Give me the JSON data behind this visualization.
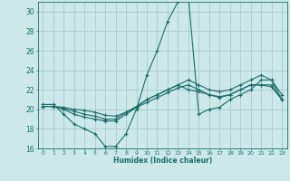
{
  "title": "",
  "xlabel": "Humidex (Indice chaleur)",
  "xlim": [
    -0.5,
    23.5
  ],
  "ylim": [
    16,
    31
  ],
  "yticks": [
    16,
    18,
    20,
    22,
    24,
    26,
    28,
    30
  ],
  "xticks": [
    0,
    1,
    2,
    3,
    4,
    5,
    6,
    7,
    8,
    9,
    10,
    11,
    12,
    13,
    14,
    15,
    16,
    17,
    18,
    19,
    20,
    21,
    22,
    23
  ],
  "bg_color": "#cce8e8",
  "grid_color": "#aacccc",
  "line_color": "#1a6e6a",
  "lines": [
    {
      "x": [
        0,
        1,
        2,
        3,
        4,
        5,
        6,
        7,
        8,
        9,
        10,
        11,
        12,
        13,
        14,
        15,
        16,
        17,
        18,
        19,
        20,
        21,
        22,
        23
      ],
      "y": [
        20.5,
        20.5,
        19.5,
        18.5,
        18.0,
        17.5,
        16.2,
        16.2,
        17.5,
        20.0,
        23.5,
        26.0,
        29.0,
        31.0,
        31.5,
        19.5,
        20.0,
        20.2,
        21.0,
        21.5,
        22.0,
        23.0,
        23.0,
        21.0
      ]
    },
    {
      "x": [
        0,
        1,
        2,
        3,
        4,
        5,
        6,
        7,
        8,
        9,
        10,
        11,
        12,
        13,
        14,
        15,
        16,
        17,
        18,
        19,
        20,
        21,
        22,
        23
      ],
      "y": [
        20.3,
        20.3,
        20.0,
        19.5,
        19.2,
        19.0,
        18.8,
        18.8,
        19.5,
        20.2,
        21.0,
        21.5,
        22.0,
        22.5,
        22.0,
        21.8,
        21.5,
        21.2,
        21.5,
        22.0,
        22.5,
        22.5,
        22.3,
        21.0
      ]
    },
    {
      "x": [
        0,
        1,
        2,
        3,
        4,
        5,
        6,
        7,
        8,
        9,
        10,
        11,
        12,
        13,
        14,
        15,
        16,
        17,
        18,
        19,
        20,
        21,
        22,
        23
      ],
      "y": [
        20.3,
        20.3,
        20.1,
        19.8,
        19.5,
        19.3,
        19.0,
        19.0,
        19.7,
        20.3,
        21.0,
        21.5,
        22.0,
        22.5,
        23.0,
        22.5,
        22.0,
        21.8,
        22.0,
        22.5,
        23.0,
        23.5,
        23.0,
        21.5
      ]
    },
    {
      "x": [
        0,
        1,
        2,
        3,
        4,
        5,
        6,
        7,
        8,
        9,
        10,
        11,
        12,
        13,
        14,
        15,
        16,
        17,
        18,
        19,
        20,
        21,
        22,
        23
      ],
      "y": [
        20.3,
        20.3,
        20.2,
        20.0,
        19.9,
        19.7,
        19.4,
        19.3,
        19.7,
        20.2,
        20.7,
        21.2,
        21.7,
        22.2,
        22.5,
        22.0,
        21.5,
        21.3,
        21.5,
        22.0,
        22.5,
        22.5,
        22.5,
        21.0
      ]
    }
  ]
}
